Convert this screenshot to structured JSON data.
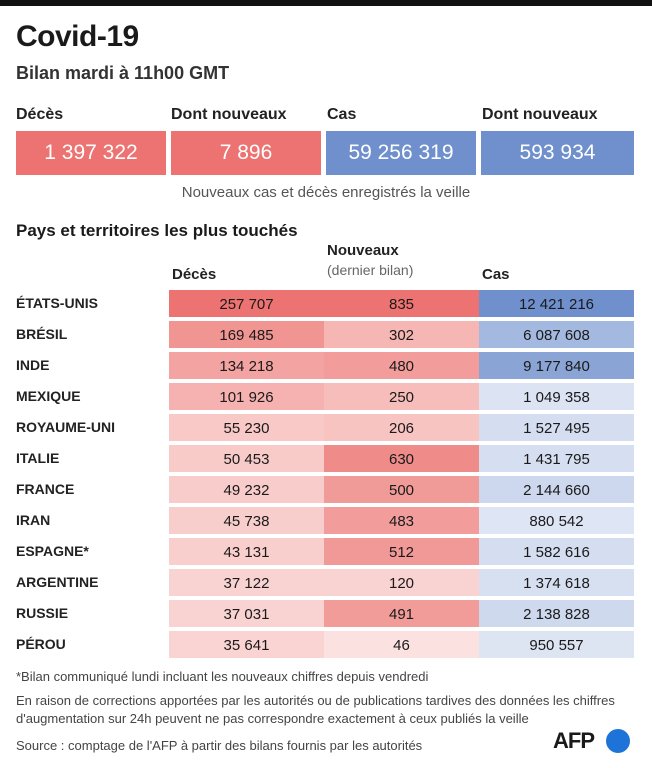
{
  "header": {
    "title": "Covid-19",
    "subtitle": "Bilan mardi à 11h00 GMT"
  },
  "summary": {
    "items": [
      {
        "label": "Décès",
        "value": "1 397 322",
        "color": "#ec7371"
      },
      {
        "label": "Dont nouveaux",
        "value": "7 896",
        "color": "#ec7371"
      },
      {
        "label": "Cas",
        "value": "59 256 319",
        "color": "#6f90cc"
      },
      {
        "label": "Dont nouveaux",
        "value": "593 934",
        "color": "#6f90cc"
      }
    ],
    "note": "Nouveaux cas et décès enregistrés la veille"
  },
  "table": {
    "section_title": "Pays et territoires les plus touchés",
    "columns": {
      "deaths": "Décès",
      "new": "Nouveaux",
      "new_sub": "(dernier bilan)",
      "cases": "Cas"
    }
  },
  "chart_data": {
    "type": "table",
    "title": "Pays et territoires les plus touchés",
    "columns": [
      "Décès",
      "Nouveaux (dernier bilan)",
      "Cas"
    ],
    "rows": [
      {
        "country": "ÉTATS-UNIS",
        "deaths": "257 707",
        "new": "835",
        "cases": "12 421 216",
        "deaths_n": 257707,
        "new_n": 835,
        "cases_n": 12421216
      },
      {
        "country": "BRÉSIL",
        "deaths": "169 485",
        "new": "302",
        "cases": "6 087 608",
        "deaths_n": 169485,
        "new_n": 302,
        "cases_n": 6087608
      },
      {
        "country": "INDE",
        "deaths": "134 218",
        "new": "480",
        "cases": "9 177 840",
        "deaths_n": 134218,
        "new_n": 480,
        "cases_n": 9177840
      },
      {
        "country": "MEXIQUE",
        "deaths": "101 926",
        "new": "250",
        "cases": "1 049 358",
        "deaths_n": 101926,
        "new_n": 250,
        "cases_n": 1049358
      },
      {
        "country": "ROYAUME-UNI",
        "deaths": "55 230",
        "new": "206",
        "cases": "1 527 495",
        "deaths_n": 55230,
        "new_n": 206,
        "cases_n": 1527495
      },
      {
        "country": "ITALIE",
        "deaths": "50 453",
        "new": "630",
        "cases": "1 431 795",
        "deaths_n": 50453,
        "new_n": 630,
        "cases_n": 1431795
      },
      {
        "country": "FRANCE",
        "deaths": "49 232",
        "new": "500",
        "cases": "2 144 660",
        "deaths_n": 49232,
        "new_n": 500,
        "cases_n": 2144660
      },
      {
        "country": "IRAN",
        "deaths": "45 738",
        "new": "483",
        "cases": "880 542",
        "deaths_n": 45738,
        "new_n": 483,
        "cases_n": 880542
      },
      {
        "country": "ESPAGNE*",
        "deaths": "43 131",
        "new": "512",
        "cases": "1 582 616",
        "deaths_n": 43131,
        "new_n": 512,
        "cases_n": 1582616
      },
      {
        "country": "ARGENTINE",
        "deaths": "37 122",
        "new": "120",
        "cases": "1 374 618",
        "deaths_n": 37122,
        "new_n": 120,
        "cases_n": 1374618
      },
      {
        "country": "RUSSIE",
        "deaths": "37 031",
        "new": "491",
        "cases": "2 138 828",
        "deaths_n": 37031,
        "new_n": 491,
        "cases_n": 2138828
      },
      {
        "country": "PÉROU",
        "deaths": "35 641",
        "new": "46",
        "cases": "950 557",
        "deaths_n": 35641,
        "new_n": 46,
        "cases_n": 950557
      }
    ],
    "colors": {
      "deaths": "#ec7371",
      "new": "#ec7371",
      "cases": "#6f90cc"
    }
  },
  "footer": {
    "footnote": "*Bilan communiqué lundi incluant les nouveaux chiffres depuis vendredi",
    "note_line1": "En raison de corrections apportées par les autorités ou de publications tardives des données  les chiffres",
    "note_line2": "d'augmentation sur 24h peuvent ne pas correspondre exactement à ceux publiés la veille",
    "source": "Source : comptage de l'AFP à partir des bilans fournis par les autorités",
    "logo_text": "AFP"
  }
}
